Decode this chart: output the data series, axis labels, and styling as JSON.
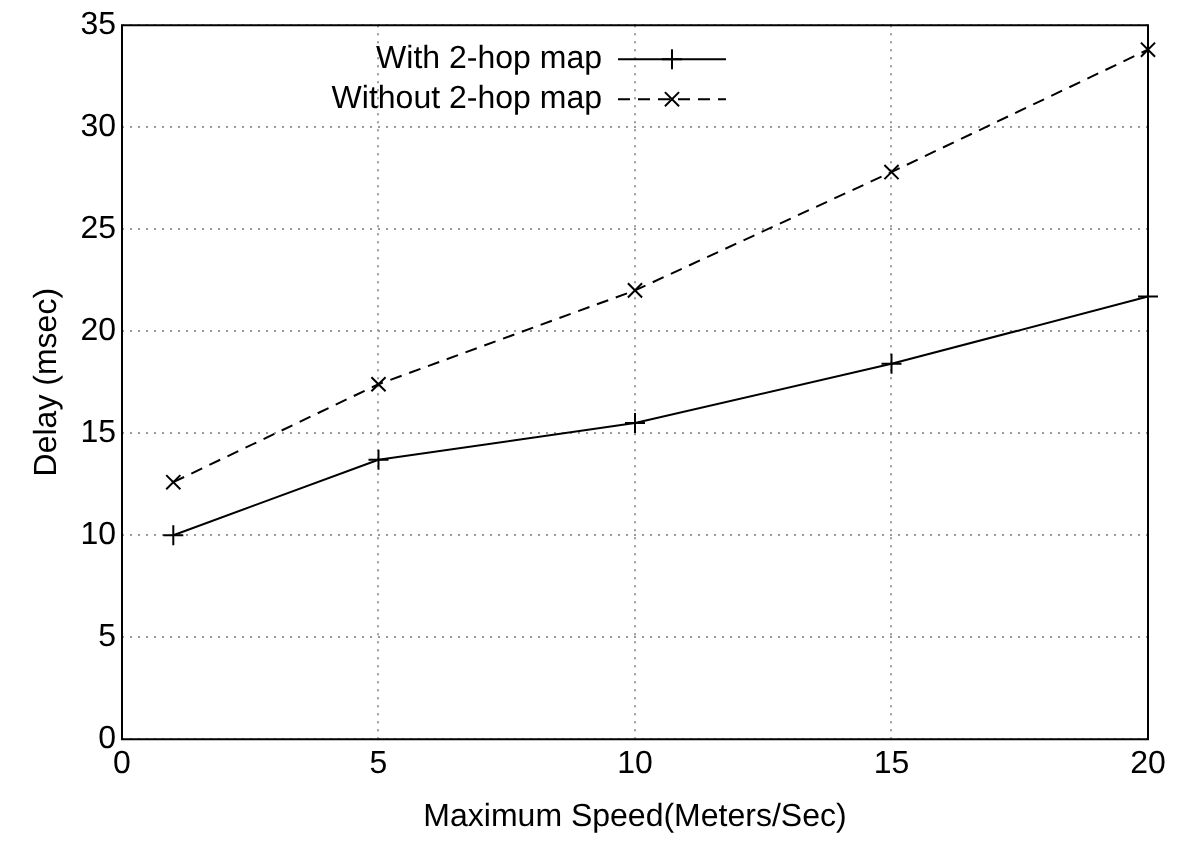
{
  "chart_data": {
    "type": "line",
    "xlabel": "Maximum Speed(Meters/Sec)",
    "ylabel": "Delay (msec)",
    "x": [
      1,
      5,
      10,
      15,
      20
    ],
    "series": [
      {
        "name": "With 2-hop map",
        "color": "#000000",
        "marker": "plus",
        "line_style": "solid",
        "values": [
          10,
          13.7,
          15.5,
          18.4,
          21.7
        ]
      },
      {
        "name": "Without 2-hop map",
        "color": "#000000",
        "marker": "cross",
        "line_style": "dashed",
        "values": [
          12.6,
          17.4,
          22.0,
          27.8,
          33.8
        ]
      }
    ],
    "xlim": [
      0,
      20
    ],
    "xticks": [
      0,
      5,
      10,
      15,
      20
    ],
    "ylim": [
      0,
      35
    ],
    "yticks": [
      0,
      5,
      10,
      15,
      20,
      25,
      30,
      35
    ],
    "grid": true,
    "legend": "top left"
  }
}
